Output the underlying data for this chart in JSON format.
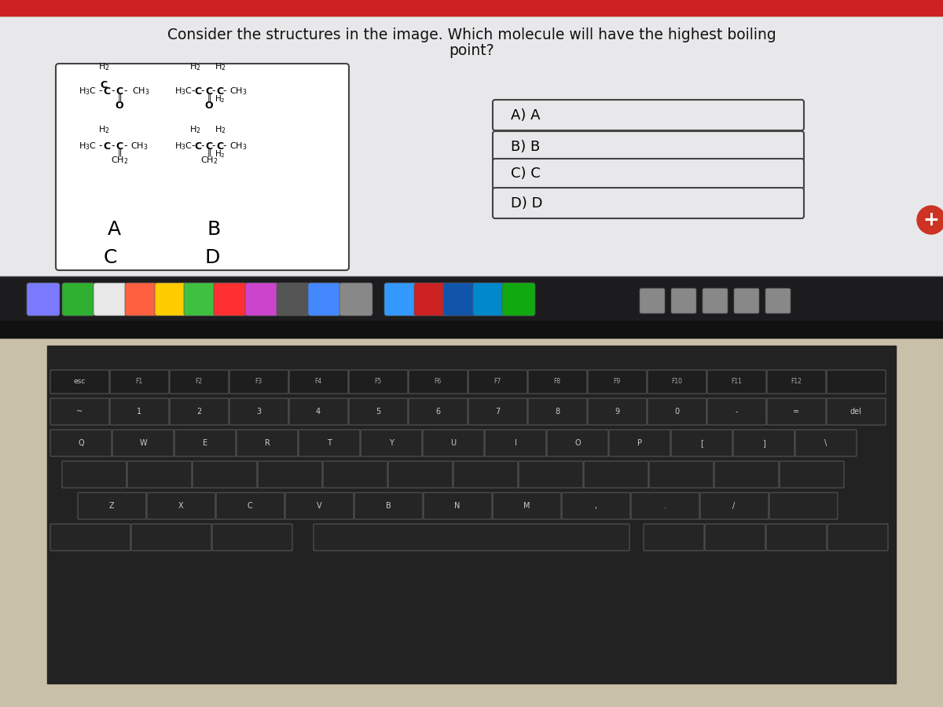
{
  "title_line1": "Consider the structures in the image. Which molecule will have the highest boiling",
  "title_line2": "point?",
  "title_fontsize": 13,
  "screen_bg": "#e8e8ea",
  "answer_labels": [
    "A) A",
    "B) B",
    "C) C",
    "D) D"
  ],
  "red_circle_color": "#cc3322",
  "laptop_body_color": "#c8c0a8",
  "keyboard_bg": "#1a1a1a",
  "bezel_color": "#111111",
  "dock_bg": "#222222",
  "screen_border": "#333333",
  "mol_box_border": "#444444",
  "ans_box_border": "#444444",
  "ans_box_bg": "#e8e8ea",
  "top_red_bar": "#cc2222"
}
